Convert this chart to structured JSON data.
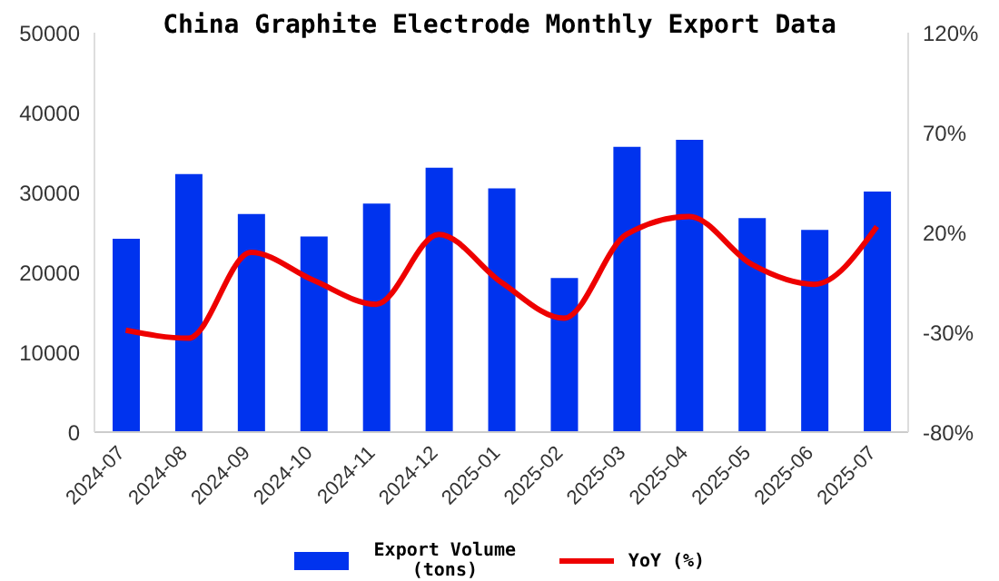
{
  "chart_data": {
    "type": "bar",
    "title": "China Graphite Electrode Monthly Export Data",
    "categories": [
      "2024-07",
      "2024-08",
      "2024-09",
      "2024-10",
      "2024-11",
      "2024-12",
      "2025-01",
      "2025-02",
      "2025-03",
      "2025-04",
      "2025-05",
      "2025-06",
      "2025-07"
    ],
    "series": [
      {
        "name": "Export Volume (tons)",
        "color": "#0033ee",
        "values": [
          24200,
          32300,
          27300,
          24500,
          28600,
          33100,
          30500,
          19300,
          35700,
          36600,
          26800,
          25300,
          30100
        ]
      },
      {
        "name": "YoY (%)",
        "type": "line",
        "axis": "y2",
        "color": "#ee0000",
        "values": [
          -29,
          -33,
          10,
          -4,
          -16,
          19,
          -5,
          -23,
          19,
          28,
          4,
          -6,
          23
        ]
      }
    ],
    "ylim": [
      0,
      50000
    ],
    "yticks": [
      0,
      10000,
      20000,
      30000,
      40000,
      50000
    ],
    "y2lim": [
      -80,
      120
    ],
    "y2ticks": [
      {
        "value": -80,
        "label": "-80%"
      },
      {
        "value": -30,
        "label": "-30%"
      },
      {
        "value": 20,
        "label": "20%"
      },
      {
        "value": 70,
        "label": "70%"
      },
      {
        "value": 120,
        "label": "120%"
      }
    ],
    "grid": false,
    "legend": "bottom",
    "marker": "none",
    "line_style": "solid"
  }
}
